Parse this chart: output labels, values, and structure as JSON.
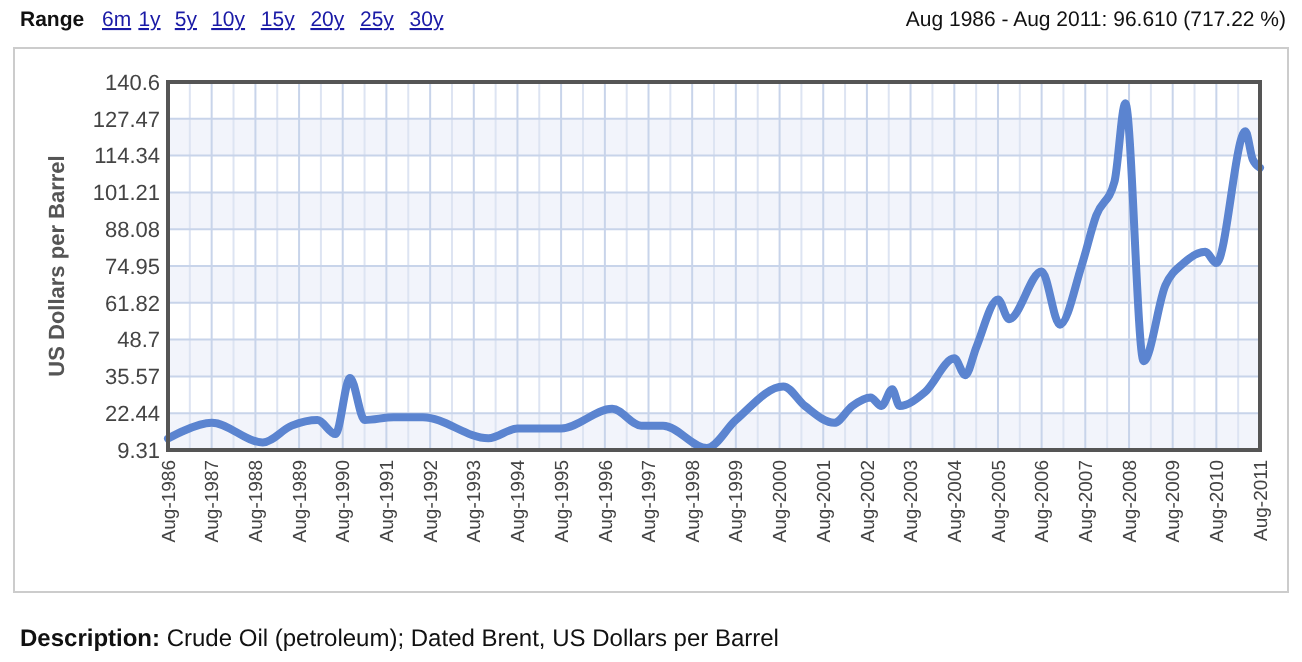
{
  "chart_data": {
    "type": "line",
    "ylabel": "US Dollars per Barrel",
    "annotations": [
      "Range",
      "6m",
      "1y",
      "5y",
      "10y",
      "15y",
      "20y",
      "25y",
      "30y",
      "Aug 1986 - Aug 2011: 96.610 (717.22 %)",
      "Description: Crude Oil (petroleum); Dated Brent, US Dollars per Barrel"
    ],
    "x": [
      "1986-08",
      "1986-12",
      "1987-08",
      "1988-10",
      "1989-06",
      "1990-01",
      "1990-06",
      "1990-10",
      "1991-02",
      "1991-10",
      "1992-06",
      "1993-12",
      "1994-08",
      "1995-08",
      "1996-10",
      "1997-06",
      "1997-12",
      "1998-12",
      "1999-08",
      "2000-09",
      "2001-03",
      "2001-11",
      "2002-04",
      "2002-09",
      "2002-12",
      "2003-03",
      "2003-05",
      "2003-12",
      "2004-08",
      "2004-11",
      "2005-02",
      "2005-08",
      "2005-11",
      "2006-08",
      "2007-01",
      "2007-07",
      "2007-11",
      "2008-04",
      "2008-07",
      "2008-12",
      "2009-06",
      "2009-11",
      "2010-05",
      "2010-08",
      "2011-04",
      "2011-06",
      "2011-08"
    ],
    "series": [
      {
        "color": "#5b84d0",
        "values": [
          13.4,
          16,
          19,
          12,
          18,
          20,
          15,
          35,
          20,
          21,
          21,
          13.5,
          17,
          17,
          24,
          18,
          18,
          10,
          20,
          32,
          25,
          19,
          25,
          28,
          25,
          31,
          25,
          30,
          42,
          36,
          46,
          63,
          56,
          73,
          54,
          75,
          93,
          105,
          133,
          41,
          68,
          76,
          80,
          76,
          123,
          113,
          110
        ]
      }
    ],
    "xlim": [
      "1986-08",
      "2011-08"
    ],
    "xticks": [
      {
        "value": "1986-08",
        "label": "Aug-1986"
      },
      {
        "value": "1987-08",
        "label": "Aug-1987"
      },
      {
        "value": "1988-08",
        "label": "Aug-1988"
      },
      {
        "value": "1989-08",
        "label": "Aug-1989"
      },
      {
        "value": "1990-08",
        "label": "Aug-1990"
      },
      {
        "value": "1991-08",
        "label": "Aug-1991"
      },
      {
        "value": "1992-08",
        "label": "Aug-1992"
      },
      {
        "value": "1993-08",
        "label": "Aug-1993"
      },
      {
        "value": "1994-08",
        "label": "Aug-1994"
      },
      {
        "value": "1995-08",
        "label": "Aug-1995"
      },
      {
        "value": "1996-08",
        "label": "Aug-1996"
      },
      {
        "value": "1997-08",
        "label": "Aug-1997"
      },
      {
        "value": "1998-08",
        "label": "Aug-1998"
      },
      {
        "value": "1999-08",
        "label": "Aug-1999"
      },
      {
        "value": "2000-08",
        "label": "Aug-2000"
      },
      {
        "value": "2001-08",
        "label": "Aug-2001"
      },
      {
        "value": "2002-08",
        "label": "Aug-2002"
      },
      {
        "value": "2003-08",
        "label": "Aug-2003"
      },
      {
        "value": "2004-08",
        "label": "Aug-2004"
      },
      {
        "value": "2005-08",
        "label": "Aug-2005"
      },
      {
        "value": "2006-08",
        "label": "Aug-2006"
      },
      {
        "value": "2007-08",
        "label": "Aug-2007"
      },
      {
        "value": "2008-08",
        "label": "Aug-2008"
      },
      {
        "value": "2009-08",
        "label": "Aug-2009"
      },
      {
        "value": "2010-08",
        "label": "Aug-2010"
      },
      {
        "value": "2011-08",
        "label": "Aug-2011"
      }
    ],
    "ylim": [
      9.31,
      140.6
    ],
    "yticks": [
      9.31,
      22.44,
      35.57,
      48.7,
      61.82,
      74.95,
      88.08,
      101.21,
      114.34,
      127.47,
      140.6
    ],
    "grid": true,
    "marker": "none",
    "line_style": "solid"
  }
}
